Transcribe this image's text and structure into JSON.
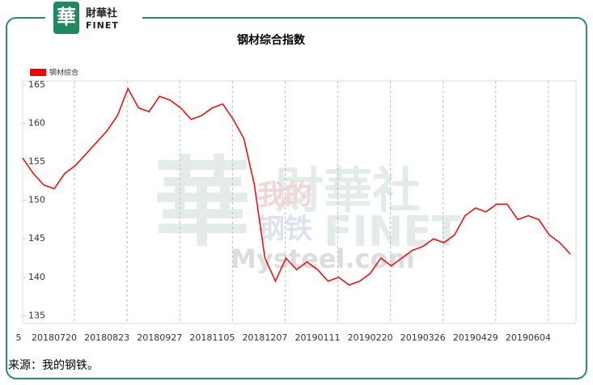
{
  "logo": {
    "mark": "華",
    "name": "財華社",
    "sub": "FINET"
  },
  "watermark": [
    "財華社",
    "FINET",
    "我的",
    "钢铁",
    "Mysteel.com"
  ],
  "source": "来源：我的钢铁。",
  "chart_data": {
    "type": "line",
    "title": "钢材综合指数",
    "categories": [
      "5",
      null,
      null,
      "20180720",
      null,
      null,
      null,
      null,
      "20180823",
      null,
      null,
      null,
      null,
      "20180927",
      null,
      null,
      null,
      null,
      "20181105",
      null,
      null,
      null,
      null,
      "20181207",
      null,
      null,
      null,
      null,
      "20190111",
      null,
      null,
      null,
      null,
      "20190220",
      null,
      null,
      null,
      null,
      "20190326",
      null,
      null,
      null,
      null,
      "20190429",
      null,
      null,
      null,
      null,
      "20190604",
      null,
      null,
      null,
      null
    ],
    "series": [
      {
        "name": "钢材综合",
        "color": "#ff0000",
        "values": [
          155.5,
          153.5,
          152,
          151.5,
          153.5,
          154.5,
          156,
          157.5,
          159,
          161,
          164.5,
          162,
          161.5,
          163.5,
          163,
          162,
          160.5,
          161,
          162,
          162.5,
          160.5,
          158,
          152,
          142.5,
          139.5,
          142.5,
          141,
          142,
          141,
          139.5,
          140,
          139,
          139.5,
          140.5,
          142.5,
          141.5,
          142.5,
          143.5,
          144,
          145,
          144.5,
          145.5,
          148,
          149,
          148.5,
          149.5,
          149.5,
          147.5,
          148,
          147.5,
          145.5,
          144.5,
          143
        ]
      }
    ],
    "ylim": [
      134,
      165.5
    ],
    "yticks": [
      135,
      140,
      145,
      150,
      155,
      160,
      165
    ],
    "grid": true,
    "legend": "top-left"
  }
}
